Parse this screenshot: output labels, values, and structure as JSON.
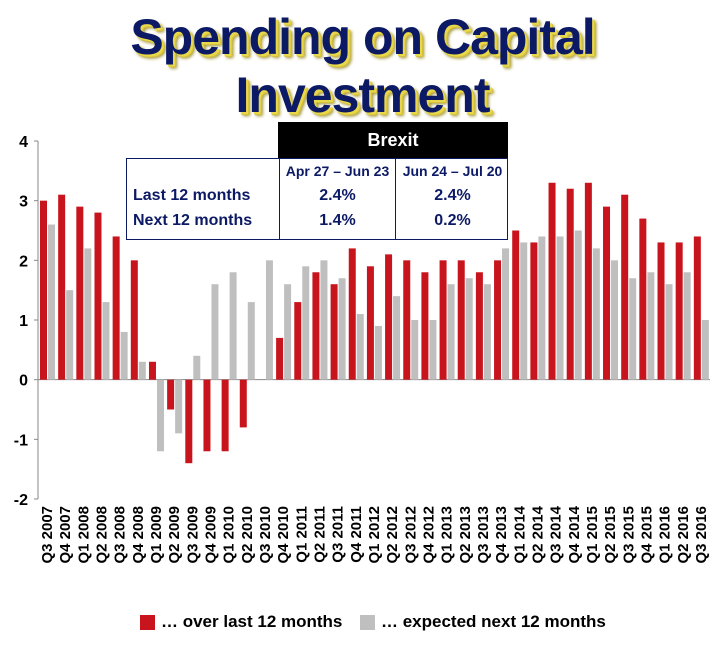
{
  "title": "Spending on Capital Investment",
  "colors": {
    "red": "#c8141c",
    "gray": "#bfbfbf",
    "title": "#0c1a66"
  },
  "legend": {
    "red_label": "… over last 12 months",
    "gray_label": "… expected next 12 months"
  },
  "brexit_table": {
    "header": "Brexit",
    "col1": "Apr 27 – Jun 23",
    "col2": "Jun 24 – Jul 20",
    "row1_label": "Last 12 months",
    "row1_v1": "2.4%",
    "row1_v2": "2.4%",
    "row2_label": "Next 12 months",
    "row2_v1": "1.4%",
    "row2_v2": "0.2%"
  },
  "chart_data": {
    "type": "bar",
    "ylim": [
      -2,
      4
    ],
    "yticks": [
      "4",
      "3",
      "2",
      "1",
      "0",
      "-1",
      "-2"
    ],
    "categories": [
      "Q3 2007",
      "Q4 2007",
      "Q1 2008",
      "Q2 2008",
      "Q3 2008",
      "Q4 2008",
      "Q1 2009",
      "Q2 2009",
      "Q3 2009",
      "Q4 2009",
      "Q1 2010",
      "Q2 2010",
      "Q3 2010",
      "Q4 2010",
      "Q1 2011",
      "Q2 2011",
      "Q3 2011",
      "Q4 2011",
      "Q1 2012",
      "Q2 2012",
      "Q3 2012",
      "Q4 2012",
      "Q1 2013",
      "Q2 2013",
      "Q3 2013",
      "Q4 2013",
      "Q1 2014",
      "Q2 2014",
      "Q3 2014",
      "Q4 2014",
      "Q1 2015",
      "Q2 2015",
      "Q3 2015",
      "Q4 2015",
      "Q1 2016",
      "Q2 2016",
      "Q3 2016"
    ],
    "series": [
      {
        "name": "… over last 12 months",
        "color": "#c8141c",
        "values": [
          3.0,
          3.1,
          2.9,
          2.8,
          2.4,
          2.0,
          0.3,
          -0.5,
          -1.4,
          -1.2,
          -1.2,
          -0.8,
          null,
          0.7,
          1.3,
          1.8,
          1.6,
          2.2,
          1.9,
          2.1,
          2.0,
          1.8,
          2.0,
          2.0,
          1.8,
          2.0,
          2.5,
          2.3,
          3.3,
          3.2,
          3.3,
          2.9,
          3.1,
          2.7,
          2.3,
          2.3,
          2.4
        ]
      },
      {
        "name": "… expected next 12 months",
        "color": "#bfbfbf",
        "values": [
          2.6,
          1.5,
          2.2,
          1.3,
          0.8,
          0.3,
          -1.2,
          -0.9,
          0.4,
          1.6,
          1.8,
          1.3,
          2.0,
          1.6,
          1.9,
          2.0,
          1.7,
          1.1,
          0.9,
          1.4,
          1.0,
          1.0,
          1.6,
          1.7,
          1.6,
          2.2,
          2.3,
          2.4,
          2.4,
          2.5,
          2.2,
          2.0,
          1.7,
          1.8,
          1.6,
          1.8,
          1.0
        ]
      }
    ]
  }
}
